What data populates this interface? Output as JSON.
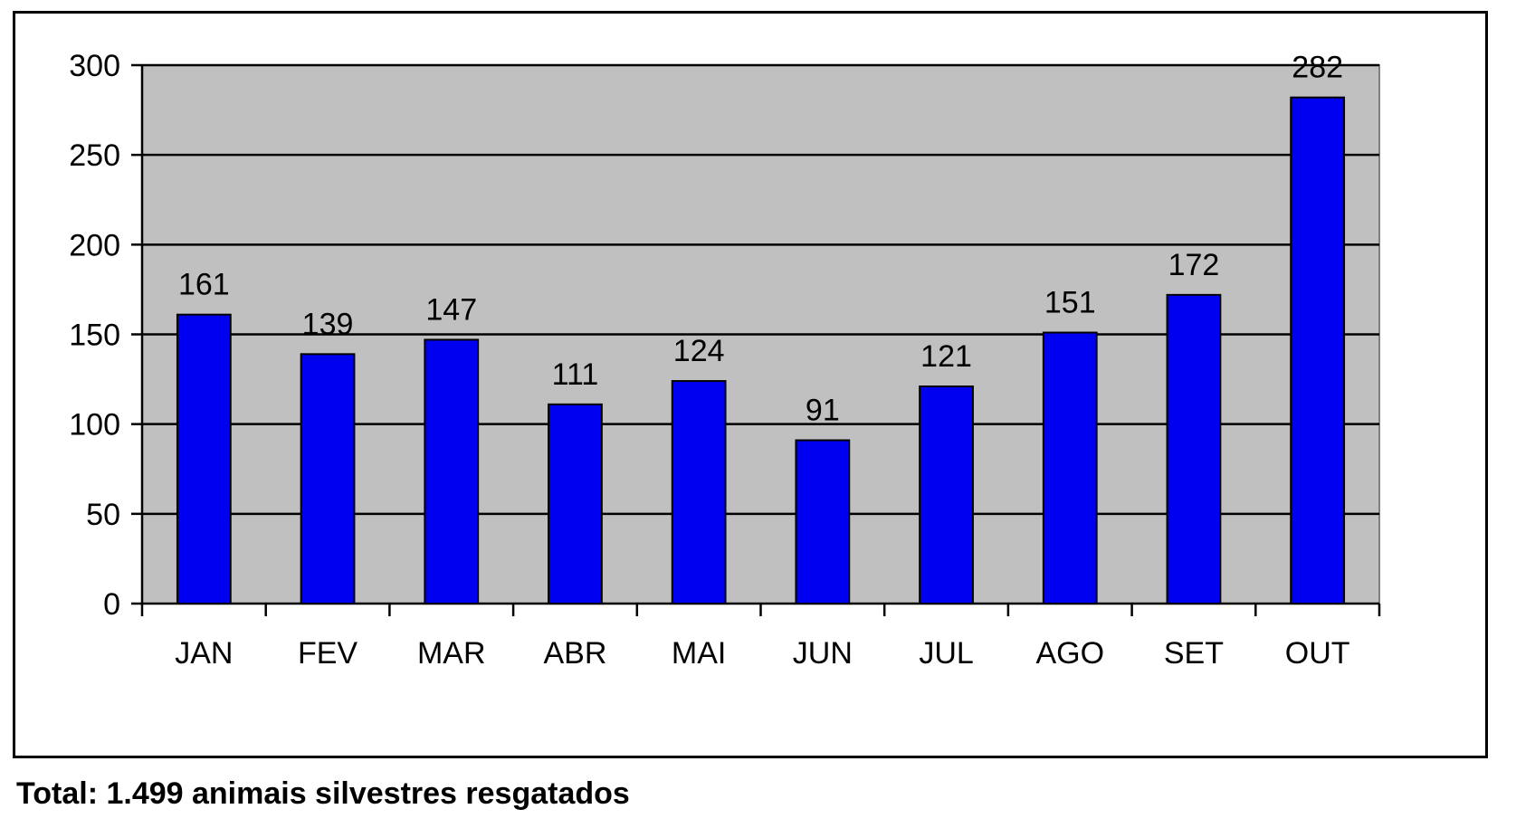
{
  "chart_data": {
    "type": "bar",
    "categories": [
      "JAN",
      "FEV",
      "MAR",
      "ABR",
      "MAI",
      "JUN",
      "JUL",
      "AGO",
      "SET",
      "OUT"
    ],
    "values": [
      161,
      139,
      147,
      111,
      124,
      91,
      121,
      151,
      172,
      282
    ],
    "data_labels": [
      "161",
      "139",
      "147",
      "111",
      "124",
      "91",
      "121",
      "151",
      "172",
      "282"
    ],
    "ylim": [
      0,
      300
    ],
    "yticks": [
      0,
      50,
      100,
      150,
      200,
      250,
      300
    ],
    "ytick_labels": [
      "0",
      "50",
      "100",
      "150",
      "200",
      "250",
      "300"
    ],
    "grid": true,
    "legend": "none",
    "title": "",
    "xlabel": "",
    "ylabel": "",
    "colors": {
      "bar": "#0000f0",
      "plot_background": "#c0c0c0",
      "gridline": "#000000"
    }
  },
  "footer": {
    "note": "Total: 1.499 animais silvestres resgatados"
  }
}
